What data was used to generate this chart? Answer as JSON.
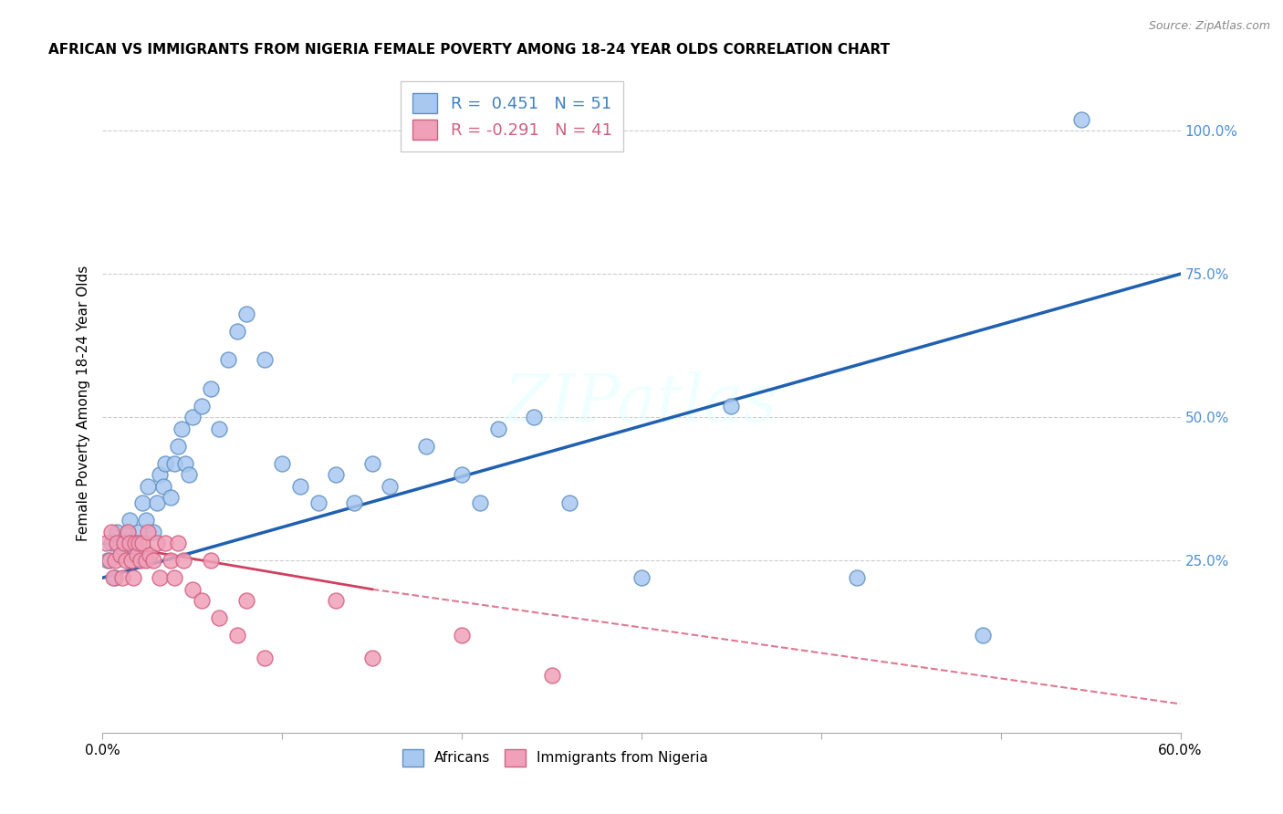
{
  "title": "AFRICAN VS IMMIGRANTS FROM NIGERIA FEMALE POVERTY AMONG 18-24 YEAR OLDS CORRELATION CHART",
  "source": "Source: ZipAtlas.com",
  "ylabel": "Female Poverty Among 18-24 Year Olds",
  "xlim": [
    0.0,
    0.6
  ],
  "ylim": [
    -0.05,
    1.1
  ],
  "legend_r1": "R =  0.451   N = 51",
  "legend_r2": "R = -0.291   N = 41",
  "african_color": "#a8c8f0",
  "nigeria_color": "#f0a0b8",
  "african_edge": "#6090c0",
  "nigeria_edge": "#d06080",
  "trendline_african_color": "#2060b0",
  "trendline_nigeria_color": "#d04060",
  "watermark": "ZIPatlas",
  "africans_x": [
    0.003,
    0.005,
    0.007,
    0.008,
    0.01,
    0.012,
    0.014,
    0.015,
    0.016,
    0.018,
    0.02,
    0.022,
    0.024,
    0.025,
    0.028,
    0.03,
    0.032,
    0.034,
    0.035,
    0.038,
    0.04,
    0.042,
    0.044,
    0.046,
    0.048,
    0.05,
    0.055,
    0.06,
    0.065,
    0.07,
    0.075,
    0.08,
    0.09,
    0.1,
    0.11,
    0.12,
    0.13,
    0.14,
    0.15,
    0.16,
    0.18,
    0.2,
    0.21,
    0.22,
    0.24,
    0.26,
    0.3,
    0.35,
    0.42,
    0.49,
    0.545
  ],
  "africans_y": [
    0.25,
    0.28,
    0.22,
    0.3,
    0.26,
    0.28,
    0.3,
    0.32,
    0.26,
    0.28,
    0.3,
    0.35,
    0.32,
    0.38,
    0.3,
    0.35,
    0.4,
    0.38,
    0.42,
    0.36,
    0.42,
    0.45,
    0.48,
    0.42,
    0.4,
    0.5,
    0.52,
    0.55,
    0.48,
    0.6,
    0.65,
    0.68,
    0.6,
    0.42,
    0.38,
    0.35,
    0.4,
    0.35,
    0.42,
    0.38,
    0.45,
    0.4,
    0.35,
    0.48,
    0.5,
    0.35,
    0.22,
    0.52,
    0.22,
    0.12,
    1.02
  ],
  "nigeria_x": [
    0.002,
    0.004,
    0.005,
    0.006,
    0.007,
    0.008,
    0.01,
    0.011,
    0.012,
    0.013,
    0.014,
    0.015,
    0.016,
    0.017,
    0.018,
    0.019,
    0.02,
    0.021,
    0.022,
    0.024,
    0.025,
    0.026,
    0.028,
    0.03,
    0.032,
    0.035,
    0.038,
    0.04,
    0.042,
    0.045,
    0.05,
    0.055,
    0.06,
    0.065,
    0.075,
    0.08,
    0.09,
    0.13,
    0.15,
    0.2,
    0.25
  ],
  "nigeria_y": [
    0.28,
    0.25,
    0.3,
    0.22,
    0.25,
    0.28,
    0.26,
    0.22,
    0.28,
    0.25,
    0.3,
    0.28,
    0.25,
    0.22,
    0.28,
    0.26,
    0.28,
    0.25,
    0.28,
    0.25,
    0.3,
    0.26,
    0.25,
    0.28,
    0.22,
    0.28,
    0.25,
    0.22,
    0.28,
    0.25,
    0.2,
    0.18,
    0.25,
    0.15,
    0.12,
    0.18,
    0.08,
    0.18,
    0.08,
    0.12,
    0.05
  ]
}
